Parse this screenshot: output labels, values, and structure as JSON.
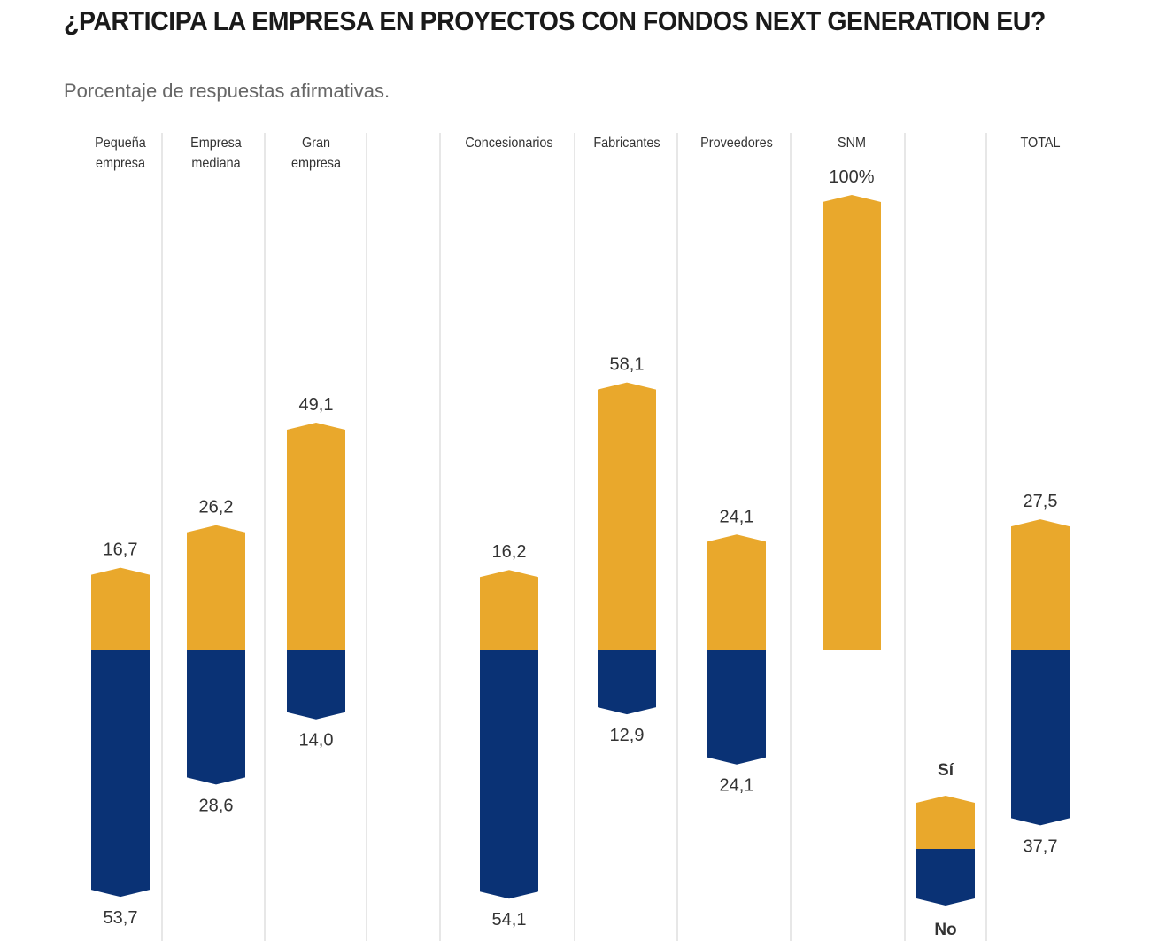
{
  "chart_data": {
    "type": "bar",
    "title": "¿PARTICIPA LA EMPRESA EN PROYECTOS CON FONDOS NEXT GENERATION EU?",
    "subtitle": "Porcentaje de respuestas afirmativas.",
    "categories": [
      [
        "Pequeña",
        "empresa"
      ],
      [
        "Empresa",
        "mediana"
      ],
      [
        "Gran",
        "empresa"
      ],
      [
        "Concesionarios"
      ],
      [
        "Fabricantes"
      ],
      [
        "Proveedores"
      ],
      [
        "SNM"
      ],
      [
        "TOTAL"
      ]
    ],
    "series": [
      {
        "name": "Sí",
        "values": [
          16.7,
          26.2,
          49.1,
          16.2,
          58.1,
          24.1,
          100,
          27.5
        ],
        "labels": [
          "16,7",
          "26,2",
          "49,1",
          "16,2",
          "58,1",
          "24,1",
          "100%",
          "27,5"
        ],
        "color": "#E9A82C"
      },
      {
        "name": "No",
        "values": [
          53.7,
          28.6,
          14.0,
          54.1,
          12.9,
          24.1,
          null,
          37.7
        ],
        "labels": [
          "53,7",
          "28,6",
          "14,0",
          "54,1",
          "12,9",
          "24,1",
          "",
          "37,7"
        ],
        "color": "#0A3275"
      }
    ],
    "legend": {
      "position": "bottom-right",
      "yes_label": "Sí",
      "no_label": "No"
    },
    "grid": false
  }
}
